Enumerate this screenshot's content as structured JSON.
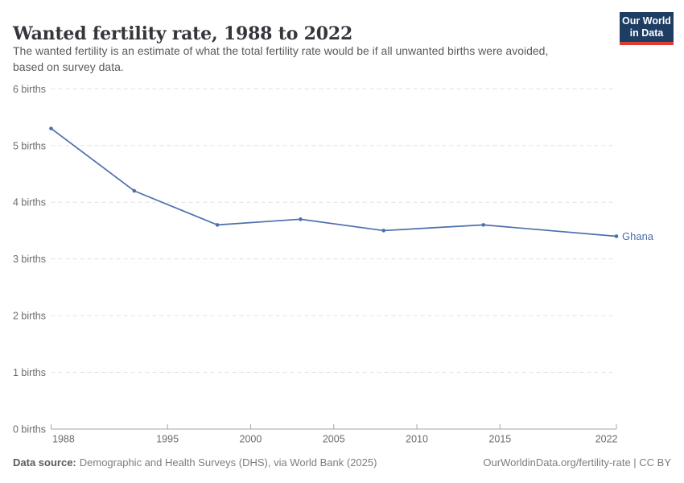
{
  "header": {
    "title": "Wanted fertility rate, 1988 to 2022",
    "logo": {
      "line1": "Our World",
      "line2": "in Data",
      "bg_color": "#1d3d63",
      "bar_color": "#dc3e33"
    }
  },
  "subtitle": {
    "line1": "The wanted fertility is an estimate of what the total fertility rate would be if all unwanted births were avoided,",
    "line2": "based on survey data."
  },
  "chart_data": {
    "type": "line",
    "title": "Wanted fertility rate, 1988 to 2022",
    "x": [
      1988,
      1993,
      1998,
      2003,
      2008,
      2014,
      2022
    ],
    "series": [
      {
        "name": "Ghana",
        "values": [
          5.3,
          4.2,
          3.6,
          3.7,
          3.5,
          3.6,
          3.4
        ]
      }
    ],
    "xlim": [
      1988,
      2022
    ],
    "ylim": [
      0,
      6
    ],
    "xticks": [
      1988,
      1995,
      2000,
      2005,
      2010,
      2015,
      2022
    ],
    "yticks": [
      0,
      1,
      2,
      3,
      4,
      5,
      6
    ],
    "y_unit": "births",
    "grid": "dashed horizontal",
    "legend_position": "line-end label",
    "colors": {
      "line": "#4d6fad",
      "grid": "#e0e0e0",
      "axis": "#a5a5a5",
      "tick_text": "#6b6b6b"
    }
  },
  "footer": {
    "data_source_label": "Data source:",
    "data_source_text": "Demographic and Health Surveys (DHS), via World Bank (2025)",
    "link": "OurWorldinData.org/fertility-rate | CC BY"
  }
}
